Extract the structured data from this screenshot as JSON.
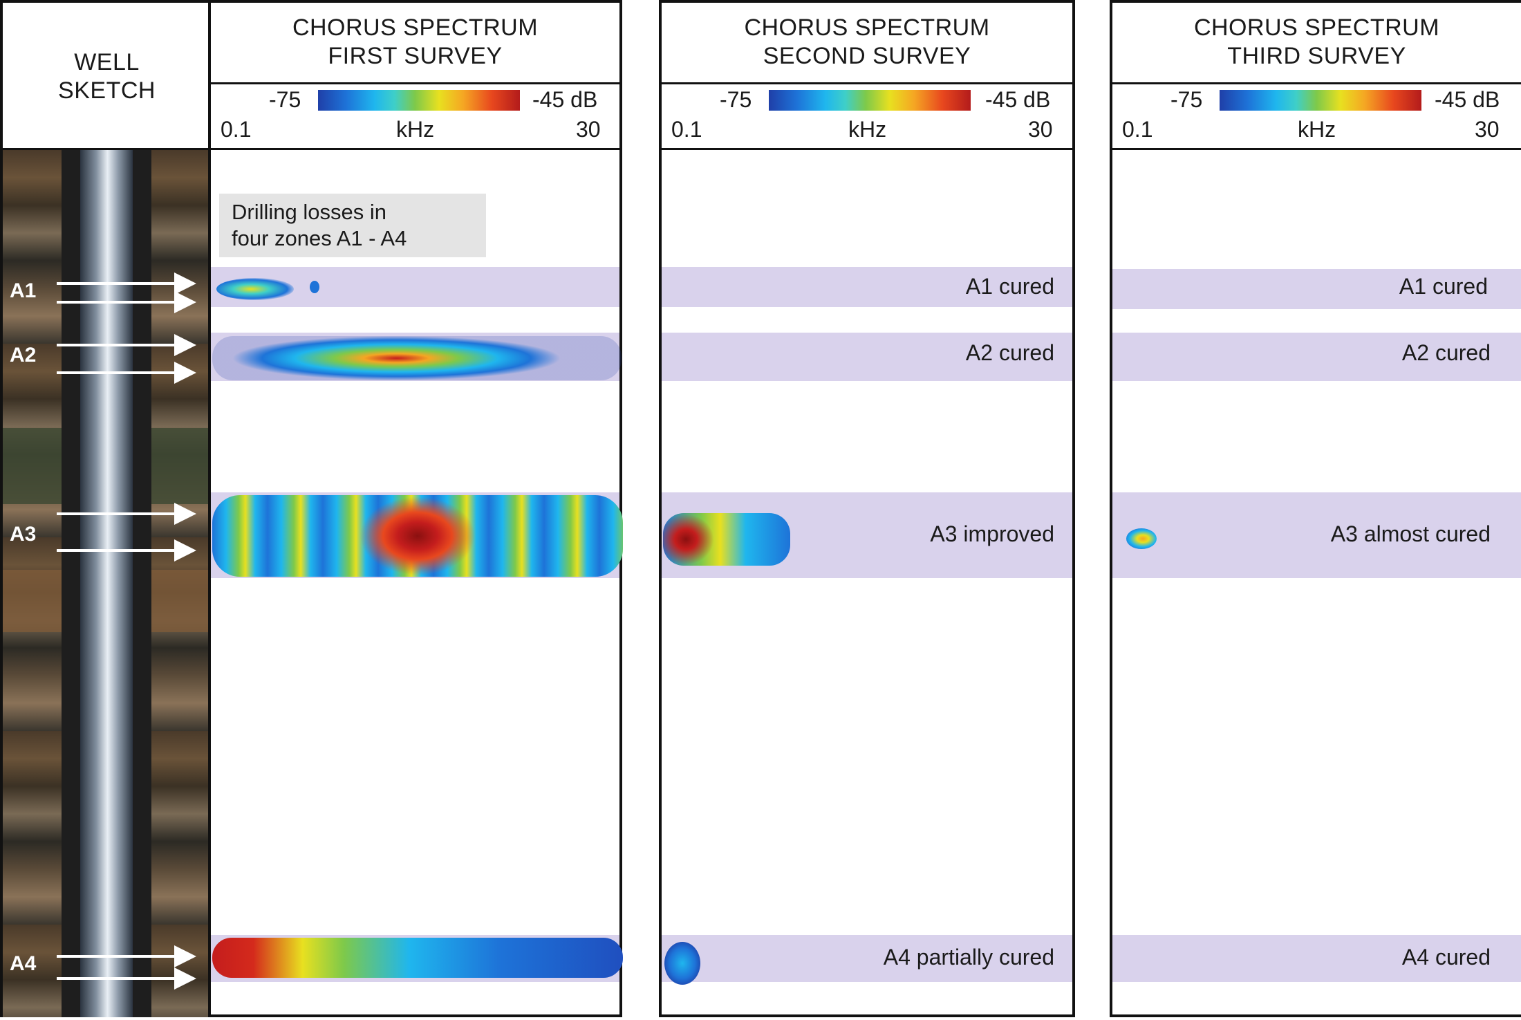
{
  "well": {
    "title": "WELL\nSKETCH",
    "zones": [
      "A1",
      "A2",
      "A3",
      "A4"
    ]
  },
  "scale": {
    "min": "-75",
    "max": "-45 dB",
    "fmin": "0.1",
    "unit": "kHz",
    "fmax": "30"
  },
  "panels": [
    {
      "title": "CHORUS SPECTRUM\nFIRST SURVEY",
      "annotation": "Drilling losses in\nfour zones A1 - A4",
      "zone_labels": [
        "",
        "",
        "",
        ""
      ]
    },
    {
      "title": "CHORUS SPECTRUM\nSECOND SURVEY",
      "zone_labels": [
        "A1 cured",
        "A2 cured",
        "A3 improved",
        "A4 partially cured"
      ]
    },
    {
      "title": "CHORUS SPECTRUM\nTHIRD SURVEY",
      "zone_labels": [
        "A1 cured",
        "A2 cured",
        "A3 almost cured",
        "A4 cured"
      ]
    }
  ],
  "colors": {
    "band": "#d9d2ec",
    "hot": "#c41d1d",
    "cold": "#1f4fbf"
  }
}
